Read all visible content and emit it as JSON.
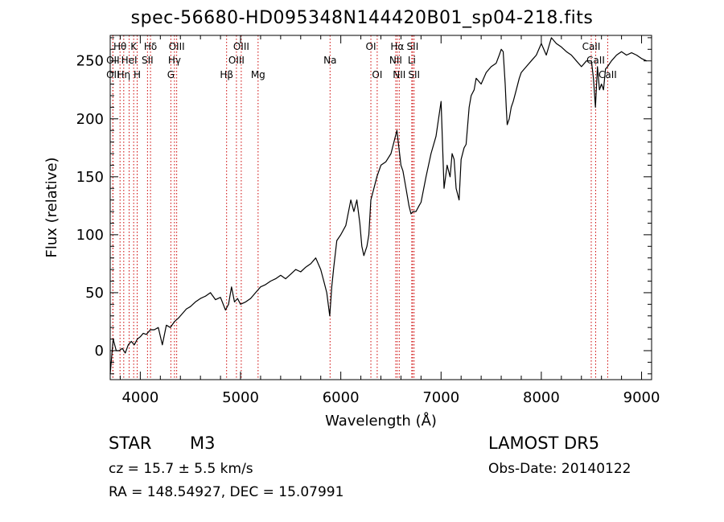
{
  "chart_data": {
    "type": "line",
    "title": "spec-56680-HD095348N144420B01_sp04-218.fits",
    "xlabel": "Wavelength (Å)",
    "ylabel": "Flux (relative)",
    "xlim": [
      3700,
      9100
    ],
    "ylim": [
      -25,
      272
    ],
    "x_ticks": [
      4000,
      5000,
      6000,
      7000,
      8000,
      9000
    ],
    "y_ticks": [
      0,
      50,
      100,
      150,
      200,
      250
    ],
    "grid": false,
    "series": [
      {
        "x": [
          3700,
          3730,
          3760,
          3790,
          3820,
          3850,
          3880,
          3910,
          3940,
          3970,
          4000,
          4030,
          4060,
          4100,
          4140,
          4180,
          4220,
          4260,
          4300,
          4340,
          4380,
          4420,
          4460,
          4500,
          4550,
          4600,
          4650,
          4700,
          4750,
          4800,
          4850,
          4880,
          4910,
          4940,
          4970,
          5000,
          5050,
          5100,
          5150,
          5200,
          5250,
          5300,
          5350,
          5400,
          5450,
          5500,
          5550,
          5600,
          5650,
          5700,
          5750,
          5800,
          5830,
          5860,
          5890,
          5910,
          5930,
          5960,
          6000,
          6050,
          6100,
          6130,
          6160,
          6190,
          6210,
          6230,
          6260,
          6280,
          6300,
          6330,
          6360,
          6400,
          6450,
          6500,
          6530,
          6560,
          6580,
          6600,
          6620,
          6650,
          6680,
          6700,
          6720,
          6750,
          6780,
          6800,
          6850,
          6900,
          6950,
          7000,
          7030,
          7060,
          7090,
          7110,
          7130,
          7150,
          7180,
          7200,
          7230,
          7250,
          7280,
          7300,
          7330,
          7350,
          7400,
          7450,
          7500,
          7550,
          7580,
          7600,
          7620,
          7640,
          7650,
          7660,
          7680,
          7700,
          7720,
          7750,
          7780,
          7800,
          7850,
          7900,
          7950,
          8000,
          8050,
          8100,
          8150,
          8200,
          8250,
          8300,
          8350,
          8400,
          8450,
          8500,
          8520,
          8540,
          8560,
          8580,
          8600,
          8620,
          8640,
          8660,
          8700,
          8750,
          8800,
          8850,
          8900,
          8950,
          9000,
          9050
        ],
        "y": [
          -20,
          10,
          0,
          0,
          2,
          -2,
          5,
          8,
          5,
          10,
          12,
          15,
          14,
          18,
          18,
          20,
          5,
          22,
          20,
          25,
          28,
          32,
          36,
          38,
          42,
          45,
          47,
          50,
          44,
          46,
          35,
          40,
          55,
          42,
          45,
          40,
          42,
          45,
          50,
          55,
          57,
          60,
          62,
          65,
          62,
          66,
          70,
          68,
          72,
          75,
          80,
          70,
          60,
          50,
          30,
          55,
          72,
          95,
          100,
          108,
          130,
          120,
          130,
          110,
          90,
          82,
          90,
          100,
          130,
          140,
          150,
          160,
          163,
          170,
          180,
          190,
          175,
          160,
          155,
          140,
          125,
          118,
          120,
          120,
          125,
          128,
          150,
          170,
          185,
          215,
          140,
          160,
          150,
          170,
          165,
          140,
          130,
          165,
          175,
          178,
          210,
          220,
          225,
          235,
          230,
          240,
          245,
          248,
          255,
          260,
          258,
          230,
          210,
          195,
          200,
          210,
          215,
          225,
          235,
          240,
          245,
          250,
          255,
          265,
          255,
          270,
          265,
          262,
          258,
          255,
          250,
          245,
          250,
          250,
          235,
          210,
          245,
          225,
          230,
          225,
          243,
          245,
          250,
          255,
          258,
          255,
          257,
          255,
          252,
          250
        ]
      }
    ],
    "emission_lines": [
      {
        "label": "Hθ",
        "wave": 3798,
        "row": 0
      },
      {
        "label": "OII",
        "wave": 3727,
        "row": 1
      },
      {
        "label": "OII",
        "wave": 3727,
        "row": 2
      },
      {
        "label": "Hη",
        "wave": 3835,
        "row": 2
      },
      {
        "label": "HeI",
        "wave": 3889,
        "row": 1
      },
      {
        "label": "K",
        "wave": 3934,
        "row": 0
      },
      {
        "label": "H",
        "wave": 3969,
        "row": 2
      },
      {
        "label": "SII",
        "wave": 4072,
        "row": 1
      },
      {
        "label": "Hδ",
        "wave": 4102,
        "row": 0
      },
      {
        "label": "G",
        "wave": 4305,
        "row": 2
      },
      {
        "label": "Hγ",
        "wave": 4341,
        "row": 1
      },
      {
        "label": "OIII",
        "wave": 4363,
        "row": 0
      },
      {
        "label": "Hβ",
        "wave": 4861,
        "row": 2
      },
      {
        "label": "OIII",
        "wave": 4959,
        "row": 1
      },
      {
        "label": "OIII",
        "wave": 5007,
        "row": 0
      },
      {
        "label": "Mg",
        "wave": 5175,
        "row": 2
      },
      {
        "label": "Na",
        "wave": 5893,
        "row": 1
      },
      {
        "label": "OI",
        "wave": 6300,
        "row": 0
      },
      {
        "label": "OI",
        "wave": 6363,
        "row": 2
      },
      {
        "label": "NII",
        "wave": 6548,
        "row": 1
      },
      {
        "label": "Hα",
        "wave": 6563,
        "row": 0
      },
      {
        "label": "NII",
        "wave": 6583,
        "row": 2
      },
      {
        "label": "Li",
        "wave": 6708,
        "row": 1
      },
      {
        "label": "SII",
        "wave": 6716,
        "row": 0
      },
      {
        "label": "SII",
        "wave": 6731,
        "row": 2
      },
      {
        "label": "CaII",
        "wave": 8498,
        "row": 0
      },
      {
        "label": "CaII",
        "wave": 8542,
        "row": 1
      },
      {
        "label": "CaII",
        "wave": 8662,
        "row": 2
      }
    ]
  },
  "info": {
    "object_class": "STAR",
    "object_type": "M3",
    "survey": "LAMOST DR5",
    "redshift": "cz = 15.7 ± 5.5 km/s",
    "obs_date": "Obs-Date: 20140122",
    "coords": "RA = 148.54927, DEC =  15.07991"
  },
  "colors": {
    "spectrum": "#000000",
    "line_markers": "#cc0000",
    "axes": "#000000"
  }
}
